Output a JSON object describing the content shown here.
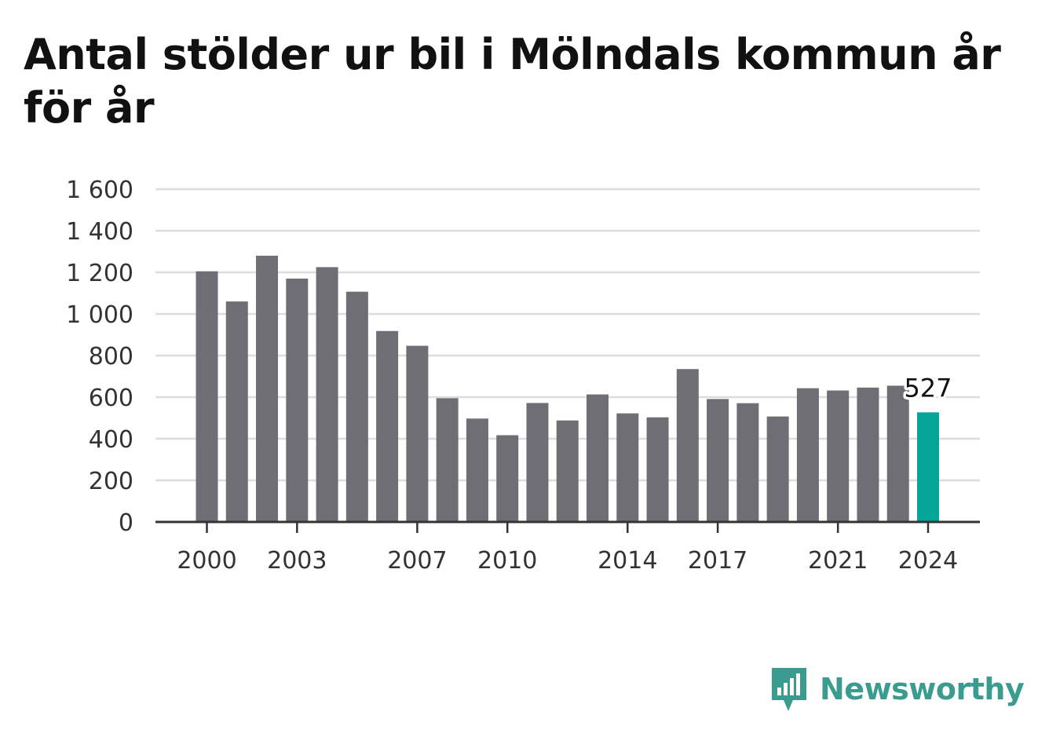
{
  "title": "Antal stölder ur bil i Mölndals kommun år för år",
  "brand": {
    "name": "Newsworthy",
    "icon": "bar-chart-speech-bubble-icon",
    "color": "#3a9b8f"
  },
  "colors": {
    "bar": "#6f6e74",
    "highlight": "#05a498",
    "grid": "#dddddd",
    "axis": "#333333"
  },
  "chart_data": {
    "type": "bar",
    "title": "Antal stölder ur bil i Mölndals kommun år för år",
    "xlabel": "",
    "ylabel": "",
    "categories": [
      "2000",
      "2001",
      "2002",
      "2003",
      "2004",
      "2005",
      "2006",
      "2007",
      "2008",
      "2009",
      "2010",
      "2011",
      "2012",
      "2013",
      "2014",
      "2015",
      "2016",
      "2017",
      "2018",
      "2019",
      "2020",
      "2021",
      "2022",
      "2023",
      "2024"
    ],
    "values": [
      1205,
      1060,
      1280,
      1170,
      1225,
      1107,
      918,
      847,
      595,
      497,
      417,
      572,
      488,
      613,
      522,
      503,
      735,
      591,
      571,
      507,
      643,
      632,
      646,
      655,
      527
    ],
    "ylim": [
      0,
      1600
    ],
    "yticks": [
      0,
      200,
      400,
      600,
      800,
      1000,
      1200,
      1400,
      1600
    ],
    "ytick_labels": [
      "0",
      "200",
      "400",
      "600",
      "800",
      "1 000",
      "1 200",
      "1 400",
      "1 600"
    ],
    "xtick_labels": [
      "2000",
      "2003",
      "2007",
      "2010",
      "2014",
      "2017",
      "2021",
      "2024"
    ],
    "highlight_index": 24,
    "highlight_label": "527",
    "grid": true,
    "legend": "none"
  }
}
